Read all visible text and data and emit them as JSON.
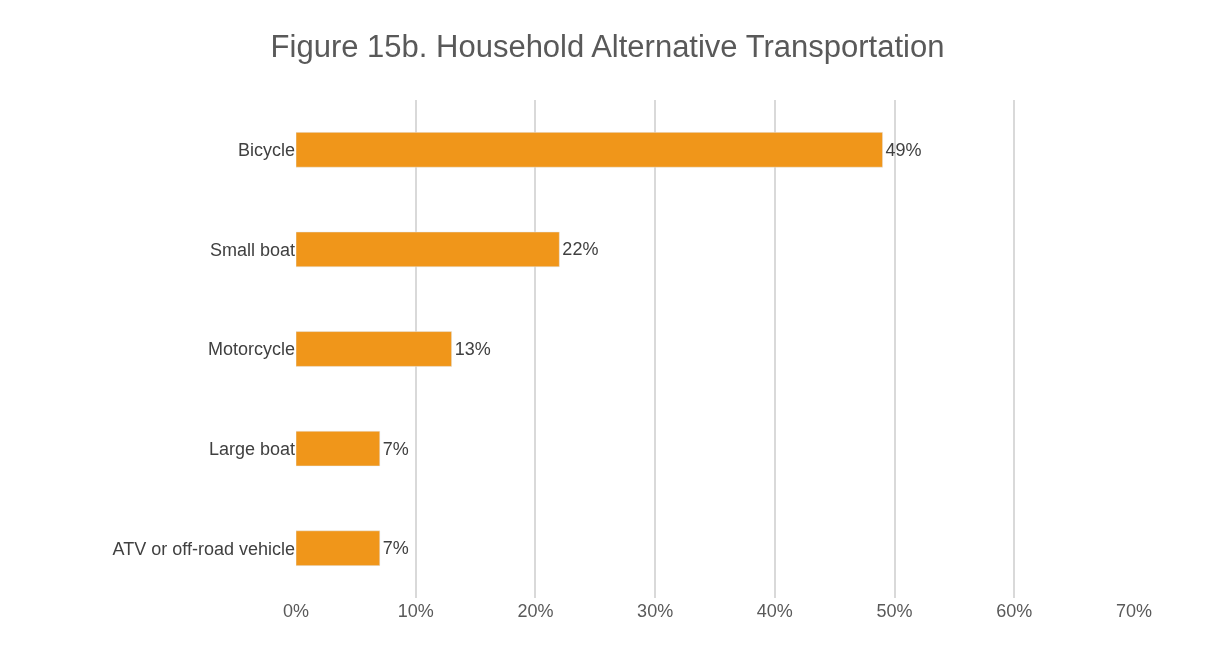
{
  "chart_data": {
    "type": "bar",
    "orientation": "horizontal",
    "title": "Figure 15b. Household Alternative Transportation",
    "categories": [
      "Bicycle",
      "Small boat",
      "Motorcycle",
      "Large boat",
      "ATV or off-road vehicle"
    ],
    "values": [
      49,
      22,
      13,
      7,
      7
    ],
    "value_labels": [
      "49%",
      "22%",
      "13%",
      "7%",
      "7%"
    ],
    "color": "#f0961a",
    "xlim": [
      0,
      70
    ],
    "xticks": [
      {
        "value": 0,
        "label": "0%"
      },
      {
        "value": 10,
        "label": "10%"
      },
      {
        "value": 20,
        "label": "20%"
      },
      {
        "value": 30,
        "label": "30%"
      },
      {
        "value": 40,
        "label": "40%"
      },
      {
        "value": 50,
        "label": "50%"
      },
      {
        "value": 60,
        "label": "60%"
      },
      {
        "value": 70,
        "label": "70%"
      }
    ],
    "grid": "x"
  }
}
